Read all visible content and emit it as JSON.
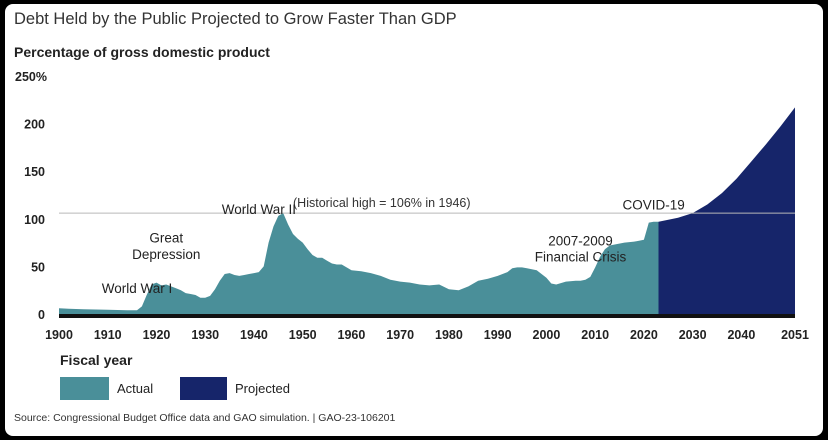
{
  "chart_data": {
    "type": "area",
    "title": "Debt Held by the Public Projected to Grow Faster Than GDP",
    "ylabel": "Percentage of gross domestic product",
    "xlabel": "Fiscal year",
    "xlim": [
      1900,
      2051
    ],
    "ylim": [
      0,
      250
    ],
    "x_ticks": [
      1900,
      1910,
      1920,
      1930,
      1940,
      1950,
      1960,
      1970,
      1980,
      1990,
      2000,
      2010,
      2020,
      2030,
      2040,
      2051
    ],
    "y_ticks": [
      {
        "value": 0,
        "label": "0"
      },
      {
        "value": 50,
        "label": "50"
      },
      {
        "value": 100,
        "label": "100"
      },
      {
        "value": 150,
        "label": "150"
      },
      {
        "value": 200,
        "label": "200"
      },
      {
        "value": 250,
        "label": "250%"
      }
    ],
    "reference_line": {
      "value": 106,
      "label": "(Historical high = 106% in 1946)"
    },
    "series": [
      {
        "name": "Actual",
        "color": "#4a8f99",
        "x": [
          1900,
          1902,
          1905,
          1910,
          1914,
          1916,
          1917,
          1918,
          1919,
          1920,
          1921,
          1922,
          1923,
          1924,
          1925,
          1926,
          1927,
          1928,
          1929,
          1930,
          1931,
          1932,
          1933,
          1934,
          1935,
          1936,
          1937,
          1938,
          1939,
          1940,
          1941,
          1942,
          1943,
          1944,
          1945,
          1946,
          1947,
          1948,
          1949,
          1950,
          1951,
          1952,
          1953,
          1954,
          1955,
          1956,
          1957,
          1958,
          1959,
          1960,
          1962,
          1964,
          1966,
          1968,
          1970,
          1972,
          1974,
          1976,
          1978,
          1980,
          1982,
          1984,
          1986,
          1988,
          1990,
          1992,
          1993,
          1994,
          1995,
          1996,
          1998,
          2000,
          2001,
          2002,
          2004,
          2006,
          2007,
          2008,
          2009,
          2010,
          2011,
          2012,
          2013,
          2014,
          2016,
          2018,
          2019,
          2020,
          2021,
          2022,
          2023
        ],
        "values": [
          6,
          5.5,
          5,
          4.5,
          4,
          4,
          8,
          20,
          31,
          33,
          30,
          31,
          29,
          27,
          25,
          22,
          21,
          20,
          17,
          17,
          19,
          26,
          35,
          42,
          43,
          41,
          40,
          41,
          42,
          43,
          44,
          50,
          75,
          92,
          103,
          106,
          94,
          84,
          79,
          75,
          68,
          62,
          59,
          59,
          56,
          53,
          52,
          52,
          49,
          46,
          45,
          43,
          40,
          36,
          34,
          33,
          31,
          30,
          31,
          26,
          25,
          29,
          35,
          37,
          40,
          44,
          48,
          49,
          49,
          48,
          46,
          38,
          32,
          31,
          34,
          35,
          35,
          36,
          39,
          49,
          60,
          68,
          72,
          73,
          75,
          76,
          77,
          78,
          96,
          97,
          97
        ]
      },
      {
        "name": "Projected",
        "color": "#16256a",
        "x": [
          2023,
          2025,
          2027,
          2030,
          2033,
          2036,
          2039,
          2042,
          2045,
          2048,
          2051
        ],
        "values": [
          97,
          99,
          101,
          106,
          115,
          127,
          142,
          160,
          178,
          197,
          217
        ]
      }
    ],
    "annotations": [
      {
        "text": "World War I",
        "x": 1916,
        "y": 22
      },
      {
        "text": "Great",
        "x": 1922,
        "y": 75
      },
      {
        "text": "Depression",
        "x": 1922,
        "y": 58
      },
      {
        "text": "World War II",
        "x": 1941,
        "y": 105
      },
      {
        "text": "2007-2009",
        "x": 2007,
        "y": 72
      },
      {
        "text": "Financial Crisis",
        "x": 2007,
        "y": 55
      },
      {
        "text": "COVID-19",
        "x": 2022,
        "y": 110
      }
    ],
    "legend": {
      "position": "bottom-left"
    }
  },
  "source_note": "Source: Congressional Budget Office data and GAO simulation.  |  GAO-23-106201"
}
